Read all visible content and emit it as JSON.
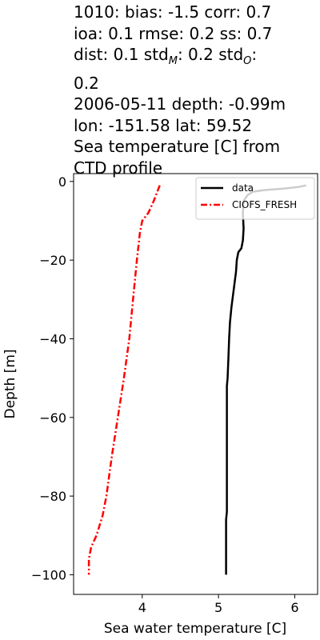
{
  "title_lines": [
    "1010: bias: -1.5  corr: 0.7",
    "ioa: 0.1  rmse: 0.2  ss: 0.7",
    "dist: 0.1  std_M: 0.2  std_O:",
    "0.2",
    "2006-05-11 depth: -0.99m",
    "lon: -151.58 lat: 59.52",
    "Sea temperature [C] from",
    "CTD profile"
  ],
  "title_std_line": {
    "prefix": "dist: 0.1  std",
    "sub_m": "M",
    "mid": ": 0.2  std",
    "sub_o": "O",
    "suffix": ":"
  },
  "chart_data": {
    "type": "line",
    "xlabel": "Sea water temperature [C]",
    "ylabel": "Depth [m]",
    "xlim": [
      3.1,
      6.3
    ],
    "ylim": [
      -105,
      2
    ],
    "xticks": [
      4,
      5,
      6
    ],
    "yticks": [
      0,
      -20,
      -40,
      -60,
      -80,
      -100
    ],
    "grid": false,
    "legend_position": "top-right",
    "series": [
      {
        "name": "data",
        "color": "#000000",
        "style": "solid",
        "points": [
          [
            6.15,
            -1
          ],
          [
            6.05,
            -1.4
          ],
          [
            5.85,
            -1.8
          ],
          [
            5.6,
            -2.2
          ],
          [
            5.45,
            -2.6
          ],
          [
            5.38,
            -3.5
          ],
          [
            5.33,
            -5
          ],
          [
            5.32,
            -8
          ],
          [
            5.33,
            -12
          ],
          [
            5.32,
            -15
          ],
          [
            5.3,
            -17
          ],
          [
            5.26,
            -18
          ],
          [
            5.24,
            -20
          ],
          [
            5.23,
            -23
          ],
          [
            5.21,
            -26
          ],
          [
            5.19,
            -29
          ],
          [
            5.17,
            -32
          ],
          [
            5.15,
            -36
          ],
          [
            5.14,
            -40
          ],
          [
            5.13,
            -45
          ],
          [
            5.12,
            -50
          ],
          [
            5.11,
            -52
          ],
          [
            5.11,
            -60
          ],
          [
            5.11,
            -70
          ],
          [
            5.11,
            -80
          ],
          [
            5.11,
            -84
          ],
          [
            5.1,
            -86
          ],
          [
            5.1,
            -100
          ]
        ]
      },
      {
        "name": "CIOFS_FRESH",
        "color": "#ff0000",
        "style": "dashdot",
        "points": [
          [
            4.23,
            -1
          ],
          [
            4.15,
            -5
          ],
          [
            4.08,
            -8
          ],
          [
            4.0,
            -10
          ],
          [
            3.97,
            -13
          ],
          [
            3.93,
            -20
          ],
          [
            3.88,
            -30
          ],
          [
            3.83,
            -40
          ],
          [
            3.76,
            -50
          ],
          [
            3.68,
            -60
          ],
          [
            3.6,
            -70
          ],
          [
            3.53,
            -80
          ],
          [
            3.48,
            -85
          ],
          [
            3.4,
            -90
          ],
          [
            3.33,
            -93
          ],
          [
            3.3,
            -96
          ],
          [
            3.3,
            -100
          ]
        ]
      }
    ]
  }
}
